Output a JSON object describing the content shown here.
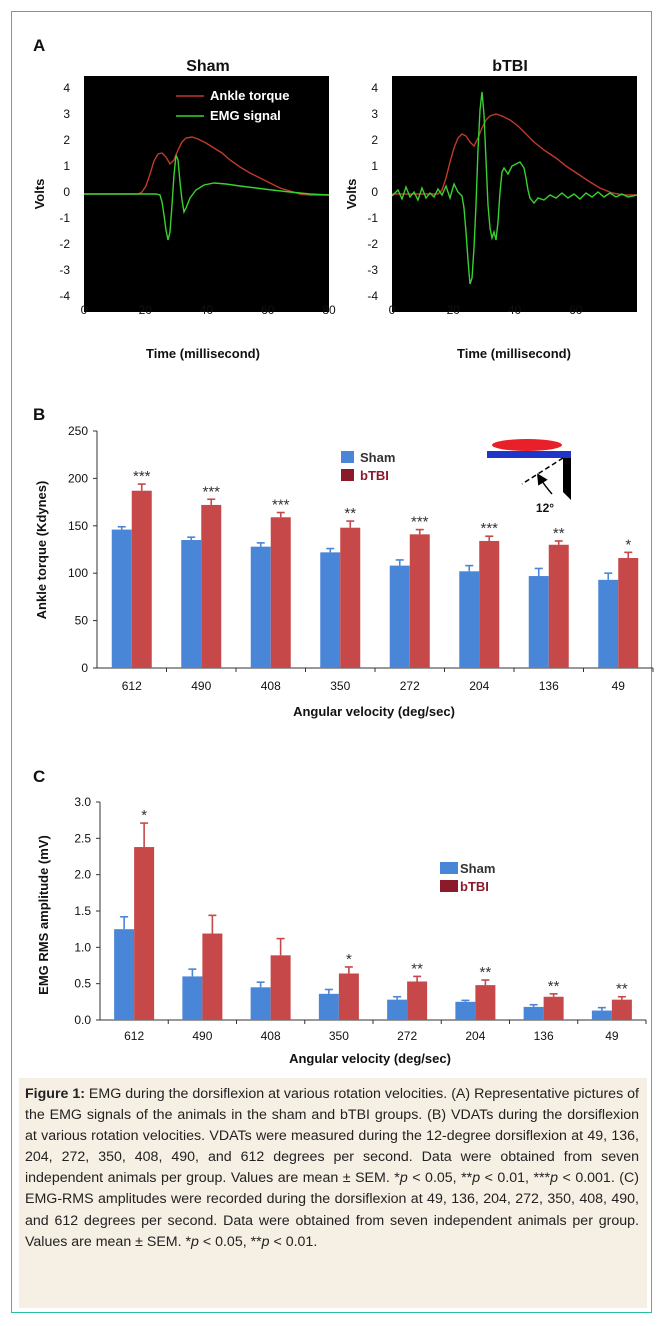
{
  "panel_a": {
    "letter": "A",
    "legend": {
      "torque": "Ankle torque",
      "emg": "EMG signal"
    },
    "plots": [
      {
        "title": "Sham",
        "ylabel": "Volts",
        "xlabel": "Time (millisecond)",
        "xticks": [
          "0",
          "20",
          "40",
          "60",
          "80"
        ],
        "yticks": [
          "4",
          "3",
          "2",
          "1",
          "0",
          "-1",
          "-2",
          "-3",
          "-4"
        ]
      },
      {
        "title": "bTBI",
        "ylabel": "Volts",
        "xlabel": "Time (millisecond)",
        "xticks": [
          "0",
          "20",
          "40",
          "60"
        ],
        "yticks": [
          "4",
          "3",
          "2",
          "1",
          "0",
          "-1",
          "-2",
          "-3",
          "-4"
        ]
      }
    ],
    "colors": {
      "background": "#000000",
      "torque": "#c0392b",
      "emg": "#39d12f"
    }
  },
  "panel_b": {
    "letter": "B",
    "inset_label": "12°"
  },
  "panel_c": {
    "letter": "C"
  },
  "chart_data": [
    {
      "type": "bar",
      "ylabel": "Ankle torque (Kdynes)",
      "xlabel": "Angular velocity (deg/sec)",
      "categories": [
        "612",
        "490",
        "408",
        "350",
        "272",
        "204",
        "136",
        "49"
      ],
      "series": [
        {
          "name": "Sham",
          "values": [
            146,
            135,
            128,
            122,
            108,
            102,
            97,
            93
          ],
          "errors": [
            3,
            3,
            4,
            4,
            6,
            6,
            8,
            7
          ],
          "color": "#4a86d8"
        },
        {
          "name": "bTBI",
          "values": [
            187,
            172,
            159,
            148,
            141,
            134,
            130,
            116
          ],
          "errors": [
            7,
            6,
            5,
            7,
            5,
            5,
            4,
            6
          ],
          "color": "#c64848"
        }
      ],
      "significance": [
        "***",
        "***",
        "***",
        "**",
        "***",
        "***",
        "**",
        "*"
      ],
      "ylim": [
        0,
        250
      ],
      "yticks": [
        "0",
        "50",
        "100",
        "150",
        "200",
        "250"
      ],
      "legend_position": "top-center"
    },
    {
      "type": "bar",
      "ylabel": "EMG RMS amplitude (mV)",
      "xlabel": "Angular velocity (deg/sec)",
      "categories": [
        "612",
        "490",
        "408",
        "350",
        "272",
        "204",
        "136",
        "49"
      ],
      "series": [
        {
          "name": "Sham",
          "values": [
            1.25,
            0.6,
            0.45,
            0.36,
            0.28,
            0.25,
            0.18,
            0.13
          ],
          "errors": [
            0.17,
            0.1,
            0.07,
            0.06,
            0.04,
            0.02,
            0.03,
            0.04
          ],
          "color": "#4a86d8"
        },
        {
          "name": "bTBI",
          "values": [
            2.38,
            1.19,
            0.89,
            0.64,
            0.53,
            0.48,
            0.32,
            0.28
          ],
          "errors": [
            0.33,
            0.25,
            0.23,
            0.09,
            0.07,
            0.07,
            0.04,
            0.04
          ],
          "color": "#c64848"
        }
      ],
      "significance": [
        "*",
        "",
        "",
        "*",
        "**",
        "**",
        "**",
        "**"
      ],
      "ylim": [
        0,
        3.0
      ],
      "yticks": [
        "0.0",
        "0.5",
        "1.0",
        "1.5",
        "2.0",
        "2.5",
        "3.0"
      ],
      "legend_position": "middle-right"
    }
  ],
  "caption": {
    "label": "Figure 1:",
    "p1": " EMG during the dorsiflexion at various rotation velocities. (A) Representative pictures of the EMG signals of the animals in the sham and bTBI groups. (B) VDATs during the dorsiflexion at various rotation velocities. VDATs were measured during the 12-degree dorsiflexion at 49, 136, 204, 272, 350, 408, 490, and 612 degrees per second. Data were obtained from seven independent animals per group. Values are mean ± SEM. *",
    "p": "p",
    "p2": " < 0.05, **",
    "p3": " < 0.01, ***",
    "p4": " < 0.001. (C) EMG-RMS amplitudes were recorded during the dorsiflexion at 49, 136, 204, 272, 350, 408, 490, and 612 degrees per second. Data were obtained from seven independent animals per group. Values are mean ± SEM. *",
    "p5": " < 0.05, **",
    "p6": " < 0.01."
  }
}
